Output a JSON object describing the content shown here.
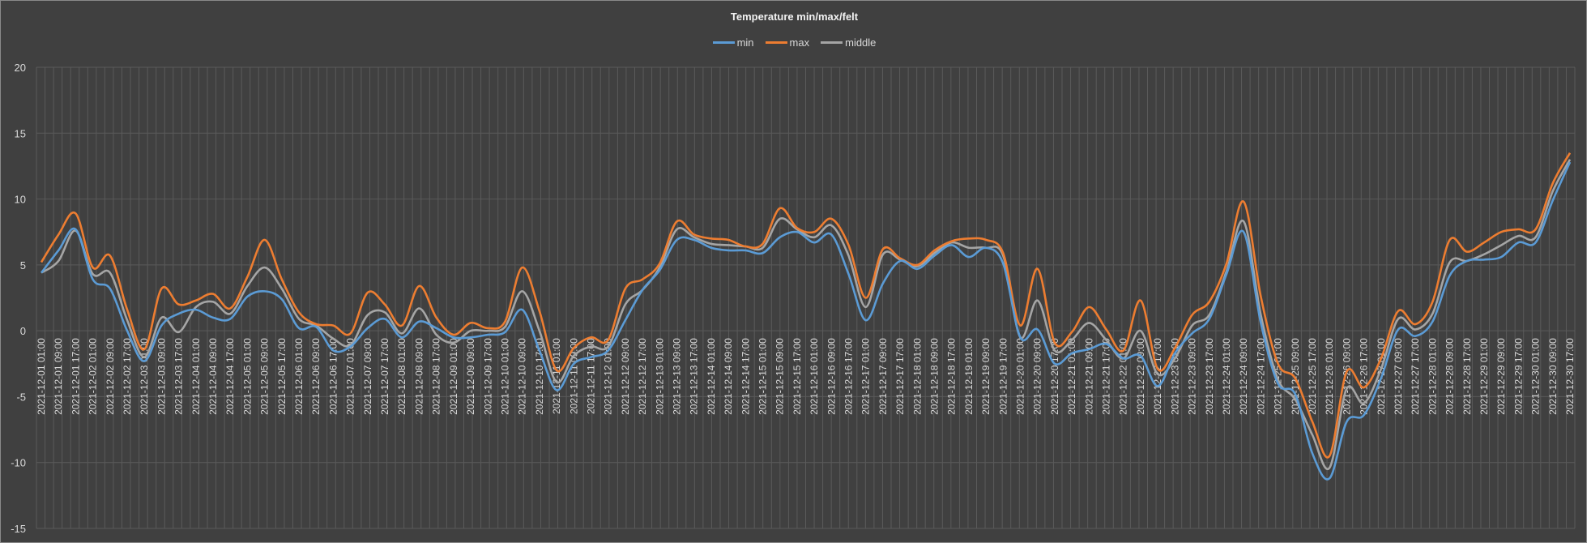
{
  "chart_data": {
    "type": "line",
    "title": "Temperature min/max/felt",
    "xlabel": "",
    "ylabel": "",
    "ylim": [
      -15,
      20
    ],
    "yticks": [
      20,
      15,
      10,
      5,
      0,
      -5,
      -10,
      -15
    ],
    "grid": true,
    "legend_position": "top",
    "x": [
      "2021-12-01 01:00",
      "2021-12-01 09:00",
      "2021-12-01 17:00",
      "2021-12-02 01:00",
      "2021-12-02 09:00",
      "2021-12-02 17:00",
      "2021-12-03 01:00",
      "2021-12-03 09:00",
      "2021-12-03 17:00",
      "2021-12-04 01:00",
      "2021-12-04 09:00",
      "2021-12-04 17:00",
      "2021-12-05 01:00",
      "2021-12-05 09:00",
      "2021-12-05 17:00",
      "2021-12-06 01:00",
      "2021-12-06 09:00",
      "2021-12-06 17:00",
      "2021-12-07 01:00",
      "2021-12-07 09:00",
      "2021-12-07 17:00",
      "2021-12-08 01:00",
      "2021-12-08 09:00",
      "2021-12-08 17:00",
      "2021-12-09 01:00",
      "2021-12-09 09:00",
      "2021-12-09 17:00",
      "2021-12-10 01:00",
      "2021-12-10 09:00",
      "2021-12-10 17:00",
      "2021-12-11 01:00",
      "2021-12-11 09:00",
      "2021-12-11 17:00",
      "2021-12-12 01:00",
      "2021-12-12 09:00",
      "2021-12-12 17:00",
      "2021-12-13 01:00",
      "2021-12-13 09:00",
      "2021-12-13 17:00",
      "2021-12-14 01:00",
      "2021-12-14 09:00",
      "2021-12-14 17:00",
      "2021-12-15 01:00",
      "2021-12-15 09:00",
      "2021-12-15 17:00",
      "2021-12-16 01:00",
      "2021-12-16 09:00",
      "2021-12-16 17:00",
      "2021-12-17 01:00",
      "2021-12-17 09:00",
      "2021-12-17 17:00",
      "2021-12-18 01:00",
      "2021-12-18 09:00",
      "2021-12-18 17:00",
      "2021-12-19 01:00",
      "2021-12-19 09:00",
      "2021-12-19 17:00",
      "2021-12-20 01:00",
      "2021-12-20 09:00",
      "2021-12-20 17:00",
      "2021-12-21 01:00",
      "2021-12-21 09:00",
      "2021-12-21 17:00",
      "2021-12-22 01:00",
      "2021-12-22 09:00",
      "2021-12-22 17:00",
      "2021-12-23 01:00",
      "2021-12-23 09:00",
      "2021-12-23 17:00",
      "2021-12-24 01:00",
      "2021-12-24 09:00",
      "2021-12-24 17:00",
      "2021-12-25 01:00",
      "2021-12-25 09:00",
      "2021-12-25 17:00",
      "2021-12-26 01:00",
      "2021-12-26 09:00",
      "2021-12-26 17:00",
      "2021-12-27 01:00",
      "2021-12-27 09:00",
      "2021-12-27 17:00",
      "2021-12-28 01:00",
      "2021-12-28 09:00",
      "2021-12-28 17:00",
      "2021-12-29 01:00",
      "2021-12-29 09:00",
      "2021-12-29 17:00",
      "2021-12-30 01:00",
      "2021-12-30 09:00",
      "2021-12-30 17:00"
    ],
    "series": [
      {
        "name": "min",
        "color": "#5b9bd5",
        "values": [
          4.4,
          6.1,
          7.7,
          3.9,
          3.2,
          0.0,
          -2.3,
          0.4,
          1.3,
          1.6,
          1.0,
          0.9,
          2.6,
          3.0,
          2.4,
          0.2,
          0.3,
          -1.5,
          -1.2,
          0.2,
          0.9,
          -0.5,
          0.7,
          0.2,
          -0.5,
          -0.5,
          -0.3,
          -0.1,
          1.6,
          -1.5,
          -4.5,
          -2.5,
          -2.0,
          -1.5,
          0.8,
          3.1,
          4.6,
          6.9,
          6.9,
          6.3,
          6.1,
          6.1,
          5.9,
          7.1,
          7.5,
          6.7,
          7.3,
          4.3,
          0.8,
          3.6,
          5.3,
          4.7,
          5.7,
          6.5,
          5.6,
          6.3,
          5.1,
          -0.5,
          0.1,
          -2.5,
          -1.7,
          -1.4,
          -1.0,
          -2.1,
          -1.9,
          -4.2,
          -1.7,
          -0.2,
          0.9,
          4.3,
          7.5,
          0.6,
          -4.0,
          -4.8,
          -9.3,
          -11.2,
          -6.9,
          -6.4,
          -3.6,
          0.1,
          -0.4,
          0.7,
          4.2,
          5.3,
          5.4,
          5.6,
          6.7,
          6.7,
          9.9,
          12.8
        ]
      },
      {
        "name": "max",
        "color": "#ed7d31",
        "values": [
          5.2,
          7.3,
          8.9,
          4.8,
          5.7,
          1.6,
          -1.4,
          3.2,
          2.0,
          2.3,
          2.8,
          1.7,
          4.1,
          6.9,
          3.9,
          1.4,
          0.5,
          0.4,
          -0.2,
          2.9,
          2.0,
          0.4,
          3.4,
          1.0,
          -0.3,
          0.6,
          0.2,
          0.7,
          4.8,
          1.5,
          -3.0,
          -1.3,
          -0.5,
          -0.7,
          3.2,
          3.9,
          5.1,
          8.3,
          7.3,
          7.0,
          6.9,
          6.4,
          6.6,
          9.3,
          7.8,
          7.5,
          8.5,
          6.5,
          2.5,
          6.2,
          5.5,
          5.0,
          6.1,
          6.8,
          7.0,
          6.9,
          5.9,
          0.4,
          4.7,
          -0.9,
          -0.1,
          1.8,
          0.1,
          -1.5,
          2.3,
          -2.9,
          -1.3,
          1.2,
          2.2,
          5.1,
          9.8,
          2.6,
          -2.5,
          -3.6,
          -6.9,
          -9.5,
          -3.1,
          -4.3,
          -2.1,
          1.5,
          0.5,
          2.2,
          6.9,
          6.0,
          6.7,
          7.5,
          7.7,
          7.7,
          11.2,
          13.5
        ]
      },
      {
        "name": "middle",
        "color": "#a5a5a5",
        "values": [
          4.4,
          5.3,
          7.6,
          4.3,
          4.4,
          0.8,
          -2.0,
          1.0,
          -0.1,
          1.8,
          2.2,
          1.3,
          3.4,
          4.8,
          3.2,
          0.9,
          0.4,
          -0.6,
          -1.1,
          1.2,
          1.4,
          -0.2,
          1.7,
          -0.3,
          -0.9,
          0.0,
          0.0,
          0.3,
          3.0,
          0.0,
          -3.9,
          -1.9,
          -1.2,
          -1.2,
          2.0,
          3.1,
          4.8,
          7.7,
          7.1,
          6.6,
          6.5,
          6.4,
          6.3,
          8.5,
          7.7,
          7.1,
          8.0,
          5.7,
          1.8,
          5.8,
          5.4,
          4.9,
          5.9,
          6.7,
          6.3,
          6.3,
          5.7,
          -0.5,
          2.3,
          -1.5,
          -0.7,
          0.6,
          -0.7,
          -2.1,
          0.0,
          -3.3,
          -2.1,
          0.4,
          1.2,
          4.5,
          8.3,
          1.2,
          -3.7,
          -5.2,
          -7.9,
          -10.4,
          -4.4,
          -5.5,
          -2.9,
          0.9,
          0.1,
          1.3,
          5.2,
          5.3,
          5.8,
          6.5,
          7.2,
          7.1,
          10.6,
          13.0
        ]
      }
    ]
  }
}
